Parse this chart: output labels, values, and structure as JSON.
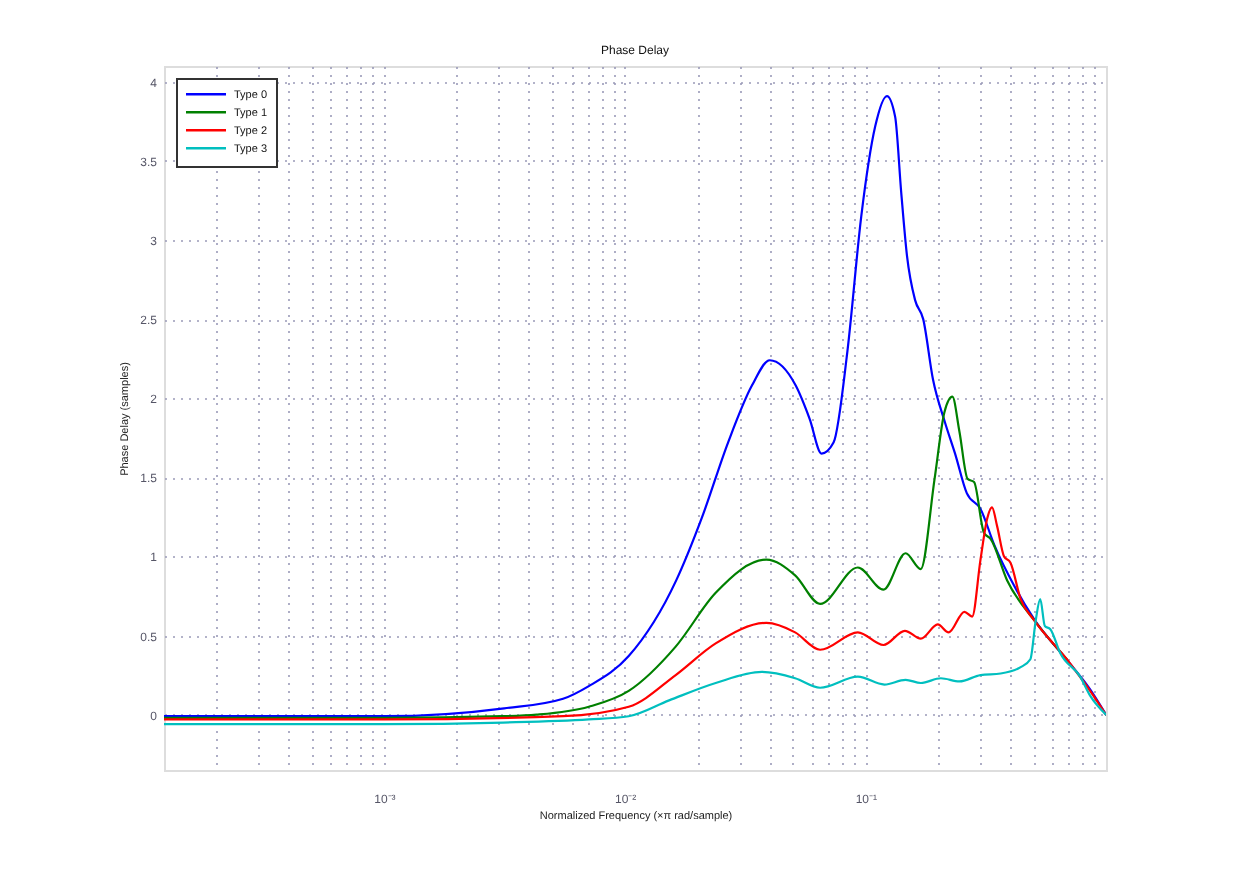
{
  "chart_data": {
    "type": "line",
    "title": "Phase Delay",
    "xlabel": "Normalized Frequency (×π rad/sample)",
    "ylabel": "Phase Delay (samples)",
    "log": "x",
    "grid": true,
    "legend": "top left",
    "line_style": "solid",
    "xlim": [
      0.000122,
      0.9999
    ],
    "ylim": [
      -0.35,
      4.1
    ],
    "xticks": [
      {
        "value": 0.0002,
        "label": null
      },
      {
        "value": 0.0003,
        "label": null
      },
      {
        "value": 0.0004,
        "label": null
      },
      {
        "value": 0.0005,
        "label": null
      },
      {
        "value": 0.0006,
        "label": null
      },
      {
        "value": 0.0007,
        "label": null
      },
      {
        "value": 0.0008,
        "label": null
      },
      {
        "value": 0.0009,
        "label": null
      },
      {
        "value": 0.001,
        "label": "10⁻³"
      },
      {
        "value": 0.002,
        "label": null
      },
      {
        "value": 0.003,
        "label": null
      },
      {
        "value": 0.004,
        "label": null
      },
      {
        "value": 0.005,
        "label": null
      },
      {
        "value": 0.006,
        "label": null
      },
      {
        "value": 0.007,
        "label": null
      },
      {
        "value": 0.008,
        "label": null
      },
      {
        "value": 0.009,
        "label": null
      },
      {
        "value": 0.01,
        "label": "10⁻²"
      },
      {
        "value": 0.02,
        "label": null
      },
      {
        "value": 0.03,
        "label": null
      },
      {
        "value": 0.04,
        "label": null
      },
      {
        "value": 0.05,
        "label": null
      },
      {
        "value": 0.06,
        "label": null
      },
      {
        "value": 0.07,
        "label": null
      },
      {
        "value": 0.08,
        "label": null
      },
      {
        "value": 0.09,
        "label": null
      },
      {
        "value": 0.1,
        "label": "10⁻¹"
      },
      {
        "value": 0.2,
        "label": null
      },
      {
        "value": 0.3,
        "label": null
      },
      {
        "value": 0.4,
        "label": null
      },
      {
        "value": 0.5,
        "label": null
      },
      {
        "value": 0.6,
        "label": null
      },
      {
        "value": 0.7,
        "label": null
      },
      {
        "value": 0.8,
        "label": null
      },
      {
        "value": 0.9,
        "label": null
      }
    ],
    "yticks": [
      0,
      0.5,
      1,
      1.5,
      2,
      2.5,
      3,
      3.5,
      4
    ],
    "series": [
      {
        "name": "Type 0",
        "color": "#0000ff",
        "x": [
          0.000122,
          0.001,
          0.00316,
          0.00555,
          0.0071,
          0.0104,
          0.0164,
          0.021,
          0.0269,
          0.0338,
          0.0401,
          0.0514,
          0.0587,
          0.0658,
          0.0738,
          0.0843,
          0.0962,
          0.11,
          0.123,
          0.133,
          0.141,
          0.149,
          0.161,
          0.174,
          0.191,
          0.214,
          0.236,
          0.264,
          0.301,
          0.344,
          0.417,
          0.504,
          0.684,
          0.859,
          0.9999
        ],
        "values": [
          -0.01,
          -0.01,
          0.04,
          0.1,
          0.18,
          0.37,
          0.85,
          1.25,
          1.72,
          2.08,
          2.24,
          2.08,
          1.87,
          1.65,
          1.72,
          2.3,
          3.15,
          3.72,
          3.91,
          3.78,
          3.3,
          2.9,
          2.62,
          2.5,
          2.12,
          1.85,
          1.65,
          1.4,
          1.3,
          1.07,
          0.81,
          0.6,
          0.35,
          0.16,
          0.0
        ]
      },
      {
        "name": "Type 1",
        "color": "#008000",
        "x": [
          0.000122,
          0.001,
          0.00313,
          0.00431,
          0.0071,
          0.0104,
          0.0163,
          0.0239,
          0.0388,
          0.0511,
          0.0649,
          0.0931,
          0.119,
          0.147,
          0.17,
          0.194,
          0.213,
          0.23,
          0.246,
          0.266,
          0.283,
          0.311,
          0.332,
          0.388,
          0.501,
          0.687
        ],
        "values": [
          -0.02,
          -0.02,
          -0.01,
          0.0,
          0.05,
          0.15,
          0.43,
          0.77,
          0.98,
          0.88,
          0.7,
          0.93,
          0.79,
          1.02,
          0.92,
          1.49,
          1.91,
          2.01,
          1.79,
          1.49,
          1.47,
          1.15,
          1.11,
          0.85,
          0.6,
          0.35
        ]
      },
      {
        "name": "Type 2",
        "color": "#ff0000",
        "x": [
          0.000122,
          0.001,
          0.00555,
          0.0104,
          0.0163,
          0.0239,
          0.0388,
          0.0511,
          0.0649,
          0.0931,
          0.119,
          0.146,
          0.17,
          0.2,
          0.222,
          0.258,
          0.278,
          0.301,
          0.321,
          0.336,
          0.353,
          0.377,
          0.401,
          0.442,
          0.501,
          0.687,
          0.859,
          0.9999
        ],
        "values": [
          -0.03,
          -0.03,
          -0.01,
          0.05,
          0.25,
          0.45,
          0.58,
          0.52,
          0.41,
          0.52,
          0.44,
          0.53,
          0.48,
          0.57,
          0.52,
          0.65,
          0.62,
          0.98,
          1.24,
          1.31,
          1.19,
          1.0,
          0.96,
          0.73,
          0.6,
          0.35,
          0.15,
          0.0
        ]
      },
      {
        "name": "Type 3",
        "color": "#00bfbf",
        "x": [
          0.000122,
          0.001,
          0.00313,
          0.0071,
          0.0104,
          0.0153,
          0.0239,
          0.0372,
          0.0511,
          0.0649,
          0.0931,
          0.12,
          0.147,
          0.17,
          0.206,
          0.246,
          0.301,
          0.365,
          0.442,
          0.485,
          0.511,
          0.533,
          0.557,
          0.587,
          0.645,
          0.781,
          0.859,
          0.9999
        ],
        "values": [
          -0.06,
          -0.06,
          -0.05,
          -0.03,
          -0.01,
          0.09,
          0.2,
          0.27,
          0.23,
          0.17,
          0.24,
          0.19,
          0.22,
          0.2,
          0.23,
          0.21,
          0.25,
          0.26,
          0.3,
          0.35,
          0.6,
          0.73,
          0.56,
          0.54,
          0.39,
          0.24,
          0.12,
          0.0
        ]
      }
    ]
  }
}
